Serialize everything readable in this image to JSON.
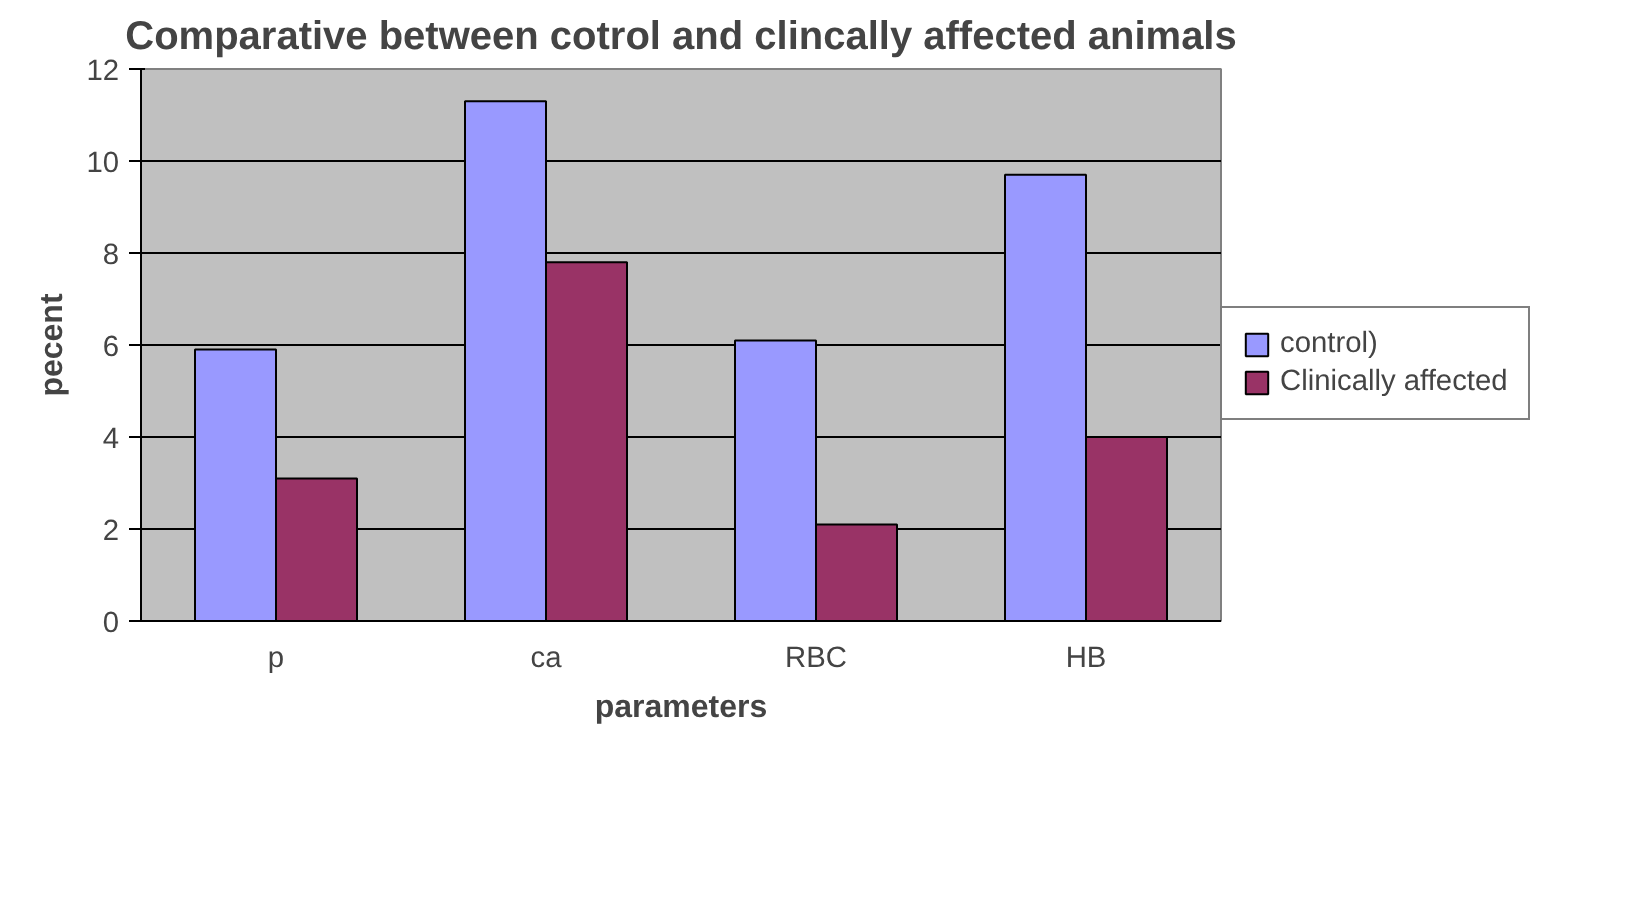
{
  "chart_data": {
    "type": "bar",
    "title": "Comparative between cotrol and clincally affected animals",
    "xlabel": "parameters",
    "ylabel": "pecent",
    "categories": [
      "p",
      "ca",
      "RBC",
      "HB"
    ],
    "series": [
      {
        "name": "control)",
        "color": "#9999ff",
        "values": [
          5.9,
          11.3,
          6.1,
          9.7
        ]
      },
      {
        "name": "Clinically affected",
        "color": "#993366",
        "values": [
          3.1,
          7.8,
          2.1,
          4.0
        ]
      }
    ],
    "ylim": [
      0,
      12
    ],
    "yticks": [
      0,
      2,
      4,
      6,
      8,
      10,
      12
    ],
    "grid": "y",
    "legend": "right"
  }
}
